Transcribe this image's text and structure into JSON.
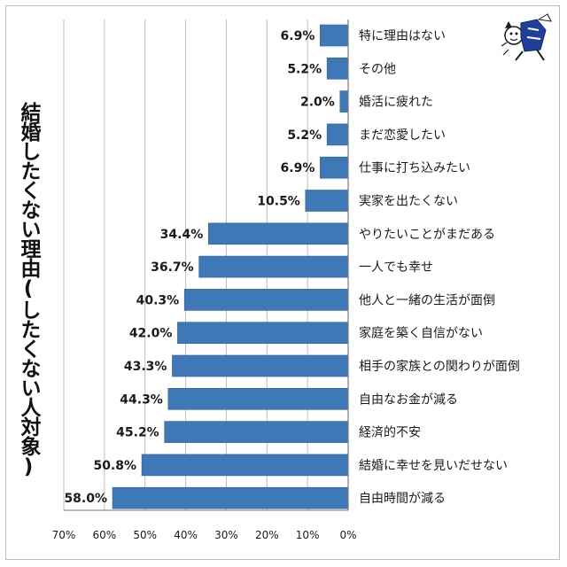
{
  "chart_data": {
    "type": "bar",
    "orientation": "horizontal",
    "ylabel": "結婚したくない理由(したくない人対象)",
    "categories": [
      "特に理由はない",
      "その他",
      "婚活に疲れた",
      "まだ恋愛したい",
      "仕事に打ち込みたい",
      "実家を出たくない",
      "やりたいことがまだある",
      "一人でも幸せ",
      "他人と一緒の生活が面倒",
      "家庭を築く自信がない",
      "相手の家族との関わりが面倒",
      "自由なお金が減る",
      "経済的不安",
      "結婚に幸せを見いだせない",
      "自由時間が減る"
    ],
    "values": [
      6.9,
      5.2,
      2.0,
      5.2,
      6.9,
      10.5,
      34.4,
      36.7,
      40.3,
      42.0,
      43.3,
      44.3,
      45.2,
      50.8,
      58.0
    ],
    "value_labels": [
      "6.9%",
      "5.2%",
      "2.0%",
      "5.2%",
      "6.9%",
      "10.5%",
      "34.4%",
      "36.7%",
      "40.3%",
      "42.0%",
      "43.3%",
      "44.3%",
      "45.2%",
      "50.8%",
      "58.0%"
    ],
    "xlim": [
      0,
      70
    ],
    "x_direction": "reversed",
    "x_ticks": [
      70,
      60,
      50,
      40,
      30,
      20,
      10,
      0
    ],
    "x_tick_labels": [
      "70%",
      "60%",
      "50%",
      "40%",
      "30%",
      "20%",
      "10%",
      "0%"
    ],
    "grid": "vertical",
    "legend": "none"
  },
  "colors": {
    "bar": "#3f78b6",
    "bar_edge": "#2d5f96",
    "grid": "#bdbdbd",
    "axis": "#7a7a7a",
    "mascot_blue": "#1f3f9a"
  },
  "icons": {
    "mascot": "cartoon-character-icon"
  }
}
